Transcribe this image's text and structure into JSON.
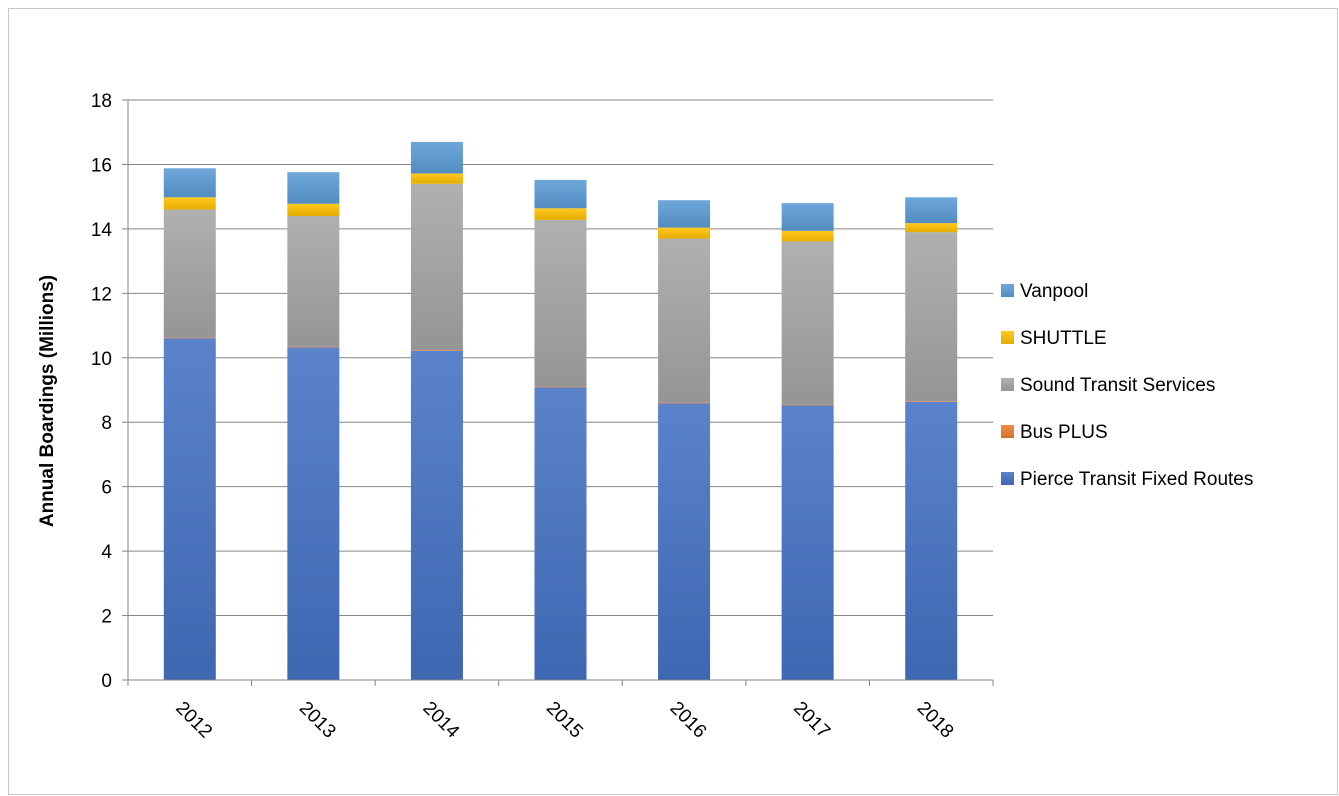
{
  "chart_data": {
    "type": "bar",
    "stacked": true,
    "title": "",
    "xlabel": "",
    "ylabel": "Annual Boardings (Millions)",
    "ylim": [
      0,
      18
    ],
    "yticks": [
      0,
      2,
      4,
      6,
      8,
      10,
      12,
      14,
      16,
      18
    ],
    "grid": true,
    "legend_position": "right",
    "categories": [
      "2012",
      "2013",
      "2014",
      "2015",
      "2016",
      "2017",
      "2018"
    ],
    "series": [
      {
        "name": "Pierce Transit Fixed Routes",
        "color": "#4472c4",
        "values": [
          10.6,
          10.32,
          10.22,
          9.08,
          8.58,
          8.52,
          8.63
        ]
      },
      {
        "name": "Bus PLUS",
        "color": "#ed7d31",
        "values": [
          0.02,
          0.02,
          0.02,
          0.02,
          0.02,
          0.02,
          0.02
        ]
      },
      {
        "name": "Sound Transit Services",
        "color": "#a5a5a5",
        "values": [
          3.98,
          4.06,
          5.16,
          5.18,
          5.1,
          5.07,
          5.25
        ]
      },
      {
        "name": "SHUTTLE",
        "color": "#ffc000",
        "values": [
          0.38,
          0.38,
          0.32,
          0.36,
          0.34,
          0.33,
          0.28
        ]
      },
      {
        "name": "Vanpool",
        "color": "#5b9bd5",
        "values": [
          0.9,
          0.98,
          0.98,
          0.88,
          0.85,
          0.86,
          0.8
        ]
      }
    ]
  }
}
